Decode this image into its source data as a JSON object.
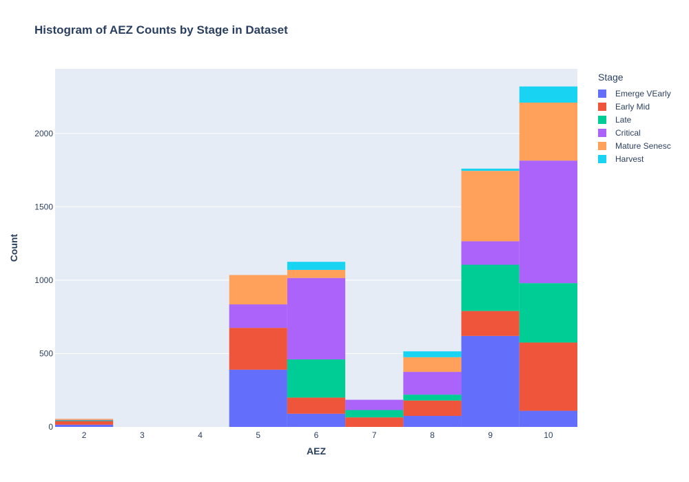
{
  "chart_data": {
    "type": "bar",
    "stacked": true,
    "title": "Histogram of AEZ Counts by Stage in Dataset",
    "xlabel": "AEZ",
    "ylabel": "Count",
    "categories": [
      "2",
      "3",
      "4",
      "5",
      "6",
      "7",
      "8",
      "9",
      "10"
    ],
    "ylim": [
      0,
      2440
    ],
    "yticks": [
      0,
      500,
      1000,
      1500,
      2000
    ],
    "grid": true,
    "legend_title": "Stage",
    "legend_position": "right",
    "series": [
      {
        "name": "Emerge VEarly",
        "color": "#636efa",
        "values": [
          15,
          0,
          0,
          390,
          90,
          0,
          75,
          620,
          110
        ]
      },
      {
        "name": "Early Mid",
        "color": "#ef553b",
        "values": [
          25,
          0,
          0,
          285,
          110,
          65,
          105,
          170,
          465
        ]
      },
      {
        "name": "Late",
        "color": "#00cc96",
        "values": [
          5,
          0,
          0,
          0,
          260,
          50,
          40,
          315,
          405
        ]
      },
      {
        "name": "Critical",
        "color": "#ab63fa",
        "values": [
          3,
          0,
          0,
          160,
          555,
          70,
          155,
          160,
          835
        ]
      },
      {
        "name": "Mature Senesc",
        "color": "#ffa15a",
        "values": [
          7,
          0,
          0,
          200,
          55,
          0,
          100,
          480,
          395
        ]
      },
      {
        "name": "Harvest",
        "color": "#19d3f3",
        "values": [
          0,
          0,
          0,
          0,
          55,
          0,
          40,
          15,
          110
        ]
      }
    ]
  }
}
